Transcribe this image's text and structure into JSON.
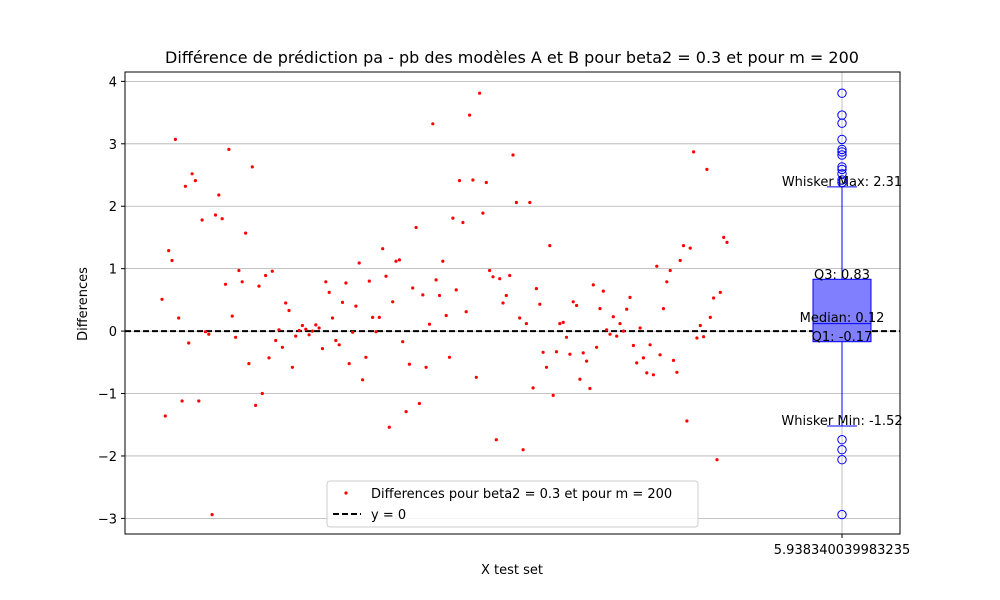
{
  "chart_data": {
    "type": "scatter",
    "title": "Différence de prédiction pa - pb des modèles A et B pour beta2 = 0.3 et pour m = 200",
    "xlabel": "X test set",
    "ylabel": "Differences",
    "ylim": [
      -3.25,
      4.15
    ],
    "y_ticks": [
      {
        "value": 4,
        "label": "4"
      },
      {
        "value": 3,
        "label": "3"
      },
      {
        "value": 2,
        "label": "2"
      },
      {
        "value": 1,
        "label": "1"
      },
      {
        "value": 0,
        "label": "0"
      },
      {
        "value": -1,
        "label": "−1"
      },
      {
        "value": -2,
        "label": "−2"
      },
      {
        "value": -3,
        "label": "−3"
      }
    ],
    "x_tick_label": "5.938340039983235",
    "grid": true,
    "colors": {
      "points": "#ff0000",
      "box_fill": "#8080ff",
      "box_edge": "#0000ff",
      "reference_line": "#000000",
      "grid": "#b0b0b0"
    },
    "legend": {
      "placement": "lower-center",
      "entries": [
        {
          "label": "Differences pour beta2 = 0.3 et pour m = 200",
          "marker": "dot",
          "color": "#ff0000"
        },
        {
          "label": "y = 0",
          "marker": "dashed-line",
          "color": "#000000"
        }
      ]
    },
    "reference_line": {
      "y": 0,
      "style": "dashed"
    },
    "series": [
      {
        "name": "Differences pour beta2 = 0.3 et pour m = 200",
        "values": [
          0.51,
          -1.36,
          1.29,
          1.13,
          3.07,
          0.21,
          -1.12,
          2.32,
          -0.19,
          2.52,
          2.41,
          -1.12,
          1.78,
          -0.01,
          -0.05,
          -2.94,
          1.86,
          2.18,
          1.8,
          0.75,
          2.91,
          0.24,
          -0.1,
          0.97,
          0.79,
          1.57,
          -0.52,
          2.63,
          -1.19,
          0.72,
          -1.0,
          0.89,
          -0.43,
          0.96,
          -0.15,
          0.02,
          -0.26,
          0.45,
          0.33,
          -0.58,
          -0.08,
          0.01,
          0.09,
          0.03,
          -0.06,
          0.0,
          0.1,
          0.05,
          -0.28,
          0.79,
          0.62,
          0.21,
          -0.15,
          -0.22,
          0.46,
          0.77,
          -0.52,
          -0.02,
          0.4,
          1.09,
          -0.78,
          -0.42,
          0.8,
          0.22,
          -0.01,
          0.22,
          1.32,
          0.88,
          -1.54,
          0.47,
          1.12,
          1.14,
          -0.17,
          -1.29,
          -0.53,
          0.69,
          1.66,
          -1.16,
          0.58,
          -0.58,
          0.11,
          3.32,
          0.82,
          0.57,
          1.12,
          0.25,
          -0.42,
          1.81,
          0.66,
          2.41,
          1.74,
          0.31,
          3.46,
          2.42,
          -0.74,
          3.81,
          1.89,
          2.38,
          0.97,
          0.87,
          -1.74,
          0.84,
          0.45,
          0.57,
          0.89,
          2.82,
          2.06,
          0.21,
          -1.9,
          0.12,
          2.06,
          -0.91,
          0.68,
          0.43,
          -0.34,
          -0.58,
          1.37,
          -1.03,
          -0.33,
          0.12,
          0.14,
          -0.1,
          -0.37,
          0.47,
          0.41,
          -0.77,
          -0.35,
          -0.48,
          -0.92,
          0.74,
          -0.26,
          0.36,
          0.64,
          0.02,
          -0.05,
          0.23,
          -0.08,
          0.12,
          0.0,
          0.35,
          0.54,
          -0.23,
          -0.51,
          0.05,
          -0.43,
          -0.67,
          -0.22,
          -0.7,
          1.04,
          -0.38,
          0.36,
          0.79,
          0.97,
          -0.47,
          -0.66,
          1.13,
          1.37,
          -1.44,
          1.33,
          2.87,
          -0.11,
          0.09,
          -0.09,
          2.59,
          0.22,
          0.53,
          -2.06,
          0.62,
          1.5,
          1.42
        ]
      }
    ],
    "boxplot": {
      "whisker_max": 2.31,
      "q3": 0.83,
      "median": 0.12,
      "q1": -0.17,
      "whisker_min": -1.52,
      "outliers": [
        3.81,
        3.46,
        3.33,
        3.07,
        2.91,
        2.87,
        2.82,
        2.63,
        2.59,
        2.52,
        2.42,
        2.38,
        -1.74,
        -1.9,
        -2.06,
        -2.94
      ]
    },
    "box_labels": {
      "whisker_max": "Whisker Max: 2.31",
      "q3": "Q3: 0.83",
      "median": "Median: 0.12",
      "q1": "Q1: -0.17",
      "whisker_min": "Whisker Min: -1.52"
    }
  }
}
